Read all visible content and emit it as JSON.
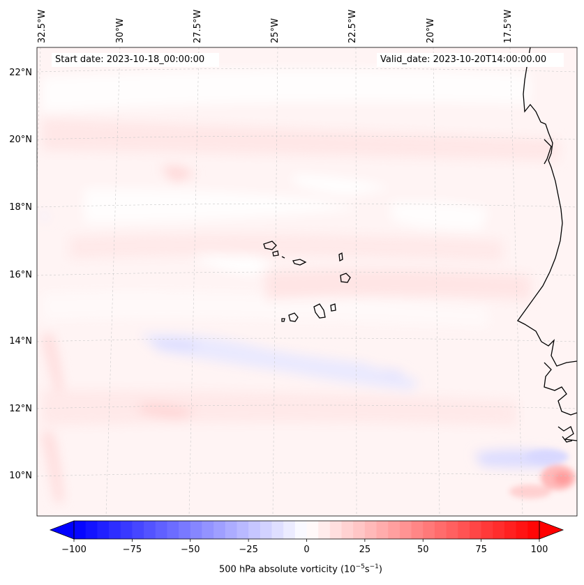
{
  "map": {
    "projection": "Lambert-like conic (converging meridians)",
    "region": "Eastern tropical Atlantic incl. Cape Verde islands and West African coast (Mauritania/Senegal)",
    "start_date": "Start date: 2023-10-18_00:00:00",
    "valid_date": "Valid_date: 2023-10-20T14:00:00.00",
    "lon_labels": [
      "32.5°W",
      "30°W",
      "27.5°W",
      "25°W",
      "22.5°W",
      "20°W",
      "17.5°W"
    ],
    "lat_labels": [
      "22°N",
      "20°N",
      "18°N",
      "16°N",
      "14°N",
      "12°N",
      "10°N"
    ],
    "field": "500 hPa absolute vorticity",
    "colorbar": {
      "min": -100,
      "max": 100,
      "ticks": [
        "−100",
        "−75",
        "−50",
        "−25",
        "0",
        "25",
        "50",
        "75",
        "100"
      ],
      "label": "500 hPa absolute vorticity (10",
      "label_exp1": "−5",
      "label_mid": "s",
      "label_exp2": "−1",
      "label_end": ")",
      "extend": "both",
      "cmap": "bwr",
      "color_min": "#0000ff",
      "color_mid": "#ffffff",
      "color_max": "#ff0000"
    }
  }
}
